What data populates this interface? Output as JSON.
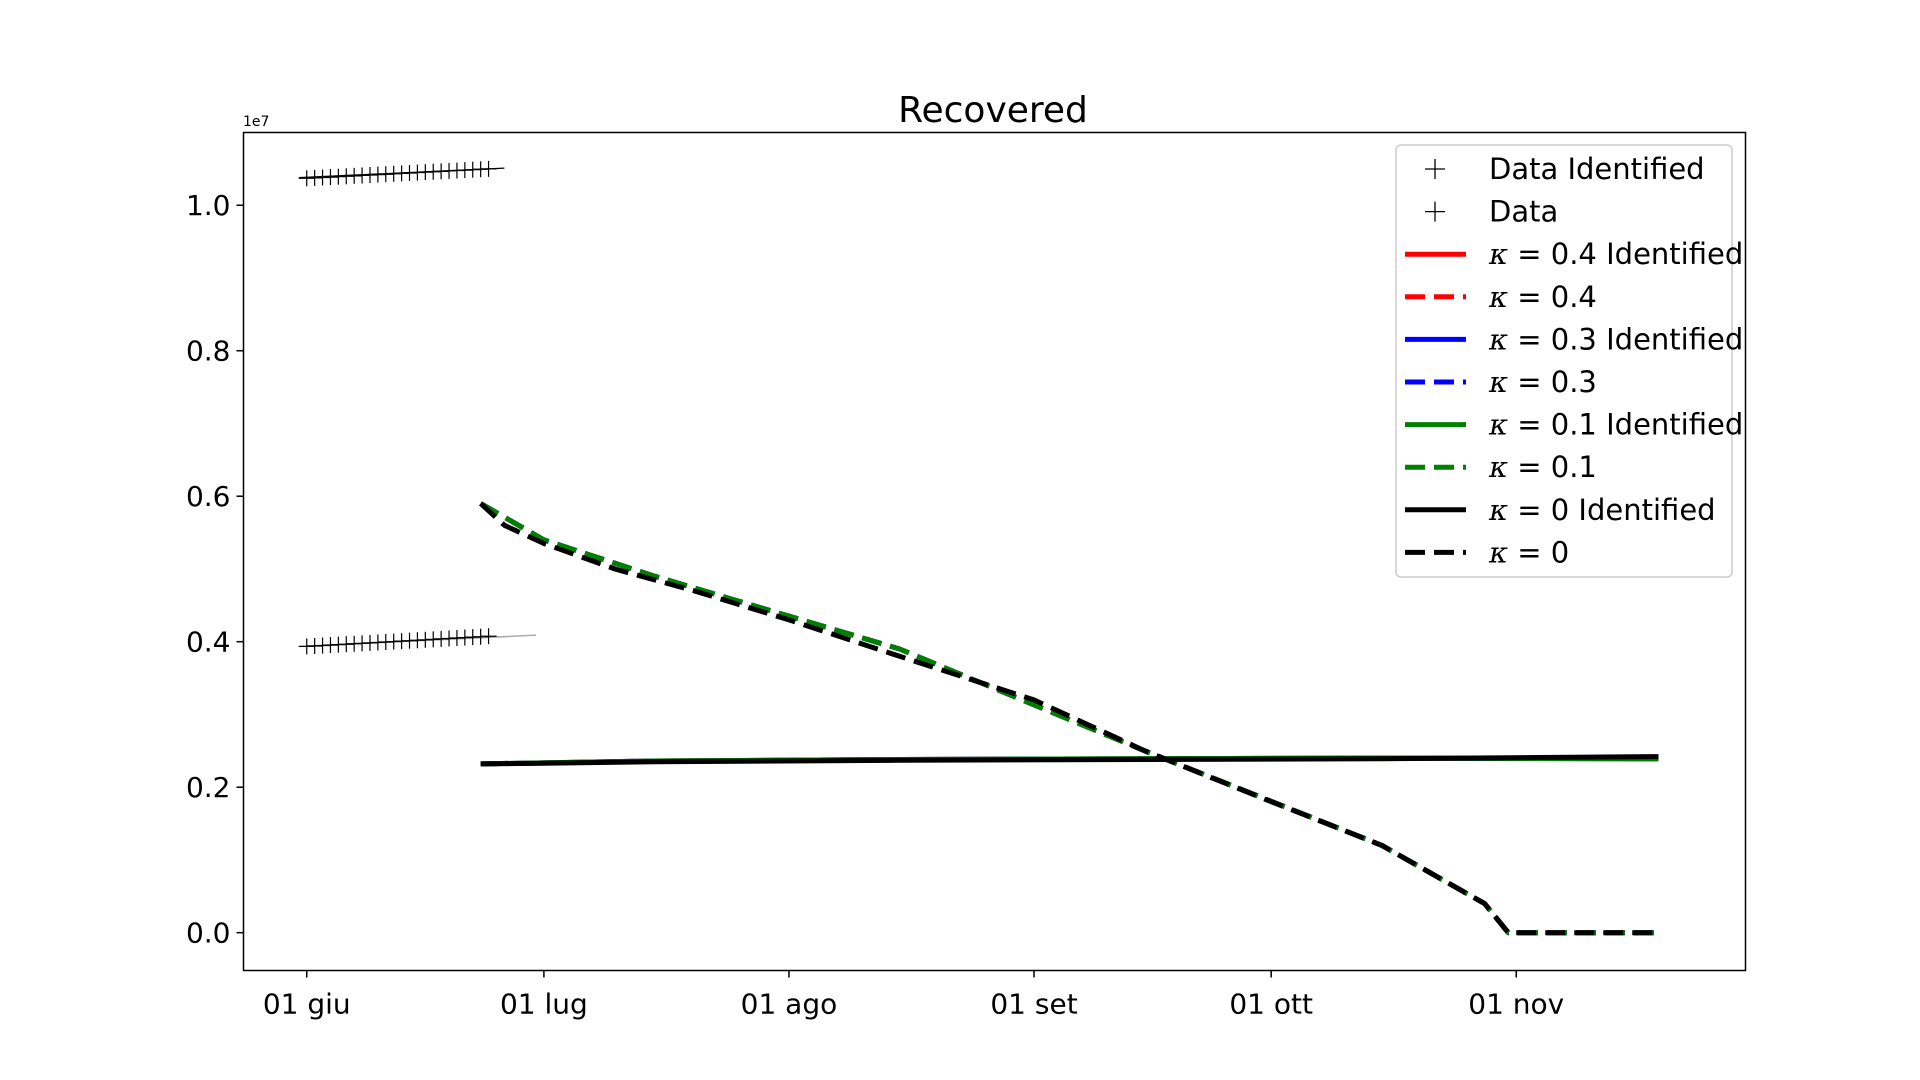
{
  "chart_data": {
    "type": "line",
    "title": "Recovered",
    "xlabel": "",
    "ylabel": "",
    "y_offset_label": "1e7",
    "xlim": [
      "2020-05-24",
      "2020-11-30"
    ],
    "ylim": [
      -0.052,
      1.1
    ],
    "x_ticks": [
      {
        "date": "2020-06-01",
        "label": "01 giu"
      },
      {
        "date": "2020-07-01",
        "label": "01 lug"
      },
      {
        "date": "2020-08-01",
        "label": "01 ago"
      },
      {
        "date": "2020-09-01",
        "label": "01 set"
      },
      {
        "date": "2020-10-01",
        "label": "01 ott"
      },
      {
        "date": "2020-11-01",
        "label": "01 nov"
      }
    ],
    "y_ticks": [
      {
        "value": 0.0,
        "label": "0.0"
      },
      {
        "value": 0.2,
        "label": "0.2"
      },
      {
        "value": 0.4,
        "label": "0.4"
      },
      {
        "value": 0.6,
        "label": "0.6"
      },
      {
        "value": 0.8,
        "label": "0.8"
      },
      {
        "value": 1.0,
        "label": "1.0"
      }
    ],
    "grid": false,
    "legend_position": "top-right",
    "scatter_series": [
      {
        "name": "Data Identified",
        "color": "#000000",
        "x_start": "2020-06-01",
        "x_end": "2020-06-24",
        "y_start": 0.3935,
        "y_end": 0.4075
      },
      {
        "name": "Data",
        "color": "#000000",
        "x_start": "2020-06-01",
        "x_end": "2020-06-24",
        "y_start": 1.037,
        "y_end": 1.05
      }
    ],
    "fit_lines": [
      {
        "x": [
          "2020-05-31",
          "2020-06-26"
        ],
        "y": [
          1.038,
          1.051
        ],
        "color": "#000000",
        "width": 1.2
      },
      {
        "x": [
          "2020-05-31",
          "2020-06-30"
        ],
        "y": [
          0.3935,
          0.409
        ],
        "color": "#aaaaaa",
        "width": 1.5
      }
    ],
    "series": [
      {
        "name": "κ = 0.4 Identified",
        "label_prefix": "κ = ",
        "label_value": "0.4",
        "label_suffix": " Identified",
        "color": "#ff0000",
        "dash": false,
        "x": [
          "2020-06-23",
          "2020-07-15",
          "2020-08-15",
          "2020-09-15",
          "2020-10-15",
          "2020-11-19"
        ],
        "y": [
          0.232,
          0.236,
          0.238,
          0.239,
          0.24,
          0.239
        ]
      },
      {
        "name": "κ = 0.4",
        "label_prefix": "κ = ",
        "label_value": "0.4",
        "label_suffix": "",
        "color": "#ff0000",
        "dash": true,
        "x": [
          "2020-06-23",
          "2020-07-01",
          "2020-07-15",
          "2020-08-15",
          "2020-09-15",
          "2020-10-15",
          "2020-10-28",
          "2020-10-31",
          "2020-11-19"
        ],
        "y": [
          0.59,
          0.54,
          0.49,
          0.39,
          0.25,
          0.12,
          0.04,
          0.0,
          0.0
        ]
      },
      {
        "name": "κ = 0.3 Identified",
        "label_prefix": "κ = ",
        "label_value": "0.3",
        "label_suffix": " Identified",
        "color": "#0000ff",
        "dash": false,
        "x": [
          "2020-06-23",
          "2020-07-15",
          "2020-08-15",
          "2020-09-15",
          "2020-10-15",
          "2020-11-19"
        ],
        "y": [
          0.232,
          0.236,
          0.238,
          0.239,
          0.24,
          0.239
        ]
      },
      {
        "name": "κ = 0.3",
        "label_prefix": "κ = ",
        "label_value": "0.3",
        "label_suffix": "",
        "color": "#0000ff",
        "dash": true,
        "x": [
          "2020-06-23",
          "2020-07-01",
          "2020-07-15",
          "2020-08-15",
          "2020-09-15",
          "2020-10-15",
          "2020-10-28",
          "2020-10-31",
          "2020-11-19"
        ],
        "y": [
          0.59,
          0.54,
          0.49,
          0.39,
          0.25,
          0.12,
          0.04,
          0.0,
          0.0
        ]
      },
      {
        "name": "κ = 0.1 Identified",
        "label_prefix": "κ = ",
        "label_value": "0.1",
        "label_suffix": " Identified",
        "color": "#008000",
        "dash": false,
        "x": [
          "2020-06-23",
          "2020-07-15",
          "2020-08-15",
          "2020-09-15",
          "2020-10-15",
          "2020-11-19"
        ],
        "y": [
          0.232,
          0.236,
          0.238,
          0.239,
          0.24,
          0.239
        ]
      },
      {
        "name": "κ = 0.1",
        "label_prefix": "κ = ",
        "label_value": "0.1",
        "label_suffix": "",
        "color": "#008000",
        "dash": true,
        "x": [
          "2020-06-23",
          "2020-07-01",
          "2020-07-15",
          "2020-08-15",
          "2020-09-15",
          "2020-10-15",
          "2020-10-28",
          "2020-10-31",
          "2020-11-19"
        ],
        "y": [
          0.59,
          0.54,
          0.49,
          0.39,
          0.25,
          0.12,
          0.04,
          0.0,
          0.0
        ]
      },
      {
        "name": "κ = 0 Identified",
        "label_prefix": "κ = ",
        "label_value": "0",
        "label_suffix": " Identified",
        "color": "#000000",
        "dash": false,
        "x": [
          "2020-06-23",
          "2020-07-01",
          "2020-07-15",
          "2020-08-15",
          "2020-09-15",
          "2020-10-15",
          "2020-11-19"
        ],
        "y": [
          0.232,
          0.233,
          0.235,
          0.237,
          0.238,
          0.239,
          0.242
        ]
      },
      {
        "name": "κ = 0",
        "label_prefix": "κ = ",
        "label_value": "0",
        "label_suffix": "",
        "color": "#000000",
        "dash": true,
        "x": [
          "2020-06-23",
          "2020-06-26",
          "2020-07-01",
          "2020-07-10",
          "2020-07-20",
          "2020-08-01",
          "2020-08-15",
          "2020-09-01",
          "2020-09-15",
          "2020-10-01",
          "2020-10-15",
          "2020-10-28",
          "2020-10-31",
          "2020-11-19"
        ],
        "y": [
          0.59,
          0.56,
          0.535,
          0.5,
          0.47,
          0.43,
          0.38,
          0.32,
          0.25,
          0.18,
          0.12,
          0.04,
          0.0,
          0.0
        ]
      }
    ],
    "legend": [
      {
        "label": "Data Identified",
        "marker": "plus",
        "color": "#000000"
      },
      {
        "label": "Data",
        "marker": "plus",
        "color": "#000000"
      },
      {
        "label_prefix": "κ = ",
        "label_value": "0.4",
        "label_suffix": " Identified",
        "marker": "line",
        "color": "#ff0000",
        "dash": false
      },
      {
        "label_prefix": "κ = ",
        "label_value": "0.4",
        "label_suffix": "",
        "marker": "line",
        "color": "#ff0000",
        "dash": true
      },
      {
        "label_prefix": "κ = ",
        "label_value": "0.3",
        "label_suffix": " Identified",
        "marker": "line",
        "color": "#0000ff",
        "dash": false
      },
      {
        "label_prefix": "κ = ",
        "label_value": "0.3",
        "label_suffix": "",
        "marker": "line",
        "color": "#0000ff",
        "dash": true
      },
      {
        "label_prefix": "κ = ",
        "label_value": "0.1",
        "label_suffix": " Identified",
        "marker": "line",
        "color": "#008000",
        "dash": false
      },
      {
        "label_prefix": "κ = ",
        "label_value": "0.1",
        "label_suffix": "",
        "marker": "line",
        "color": "#008000",
        "dash": true
      },
      {
        "label_prefix": "κ = ",
        "label_value": "0",
        "label_suffix": " Identified",
        "marker": "line",
        "color": "#000000",
        "dash": false
      },
      {
        "label_prefix": "κ = ",
        "label_value": "0",
        "label_suffix": "",
        "marker": "line",
        "color": "#000000",
        "dash": true
      }
    ]
  }
}
